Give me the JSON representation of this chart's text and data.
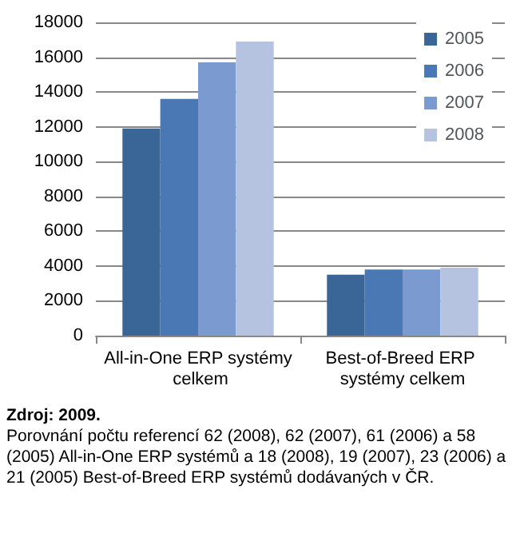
{
  "chart_data": {
    "type": "bar",
    "categories": [
      "All-in-One ERP systémy celkem",
      "Best-of-Breed ERP systémy celkem"
    ],
    "series": [
      {
        "name": "2005",
        "color": "#3a6597",
        "values": [
          11900,
          3500
        ]
      },
      {
        "name": "2006",
        "color": "#4a78b5",
        "values": [
          13600,
          3800
        ]
      },
      {
        "name": "2007",
        "color": "#7b9bd0",
        "values": [
          15700,
          3800
        ]
      },
      {
        "name": "2008",
        "color": "#b5c3e0",
        "values": [
          16900,
          3900
        ]
      }
    ],
    "ylim": [
      0,
      18000
    ],
    "yticks": [
      0,
      2000,
      4000,
      6000,
      8000,
      10000,
      12000,
      14000,
      16000,
      18000
    ],
    "grid": "y",
    "legend": "top right",
    "annotations": [
      "Zdroj: 2009.",
      "Porovnání počtu referencí 62 (2008), 62 (2007), 61 (2006) a 58 (2005) All-in-One ERP systémů a 18 (2008), 19 (2007), 23 (2006) a 21 (2005) Best-of-Breed ERP systémů dodávaných v ČR."
    ]
  }
}
